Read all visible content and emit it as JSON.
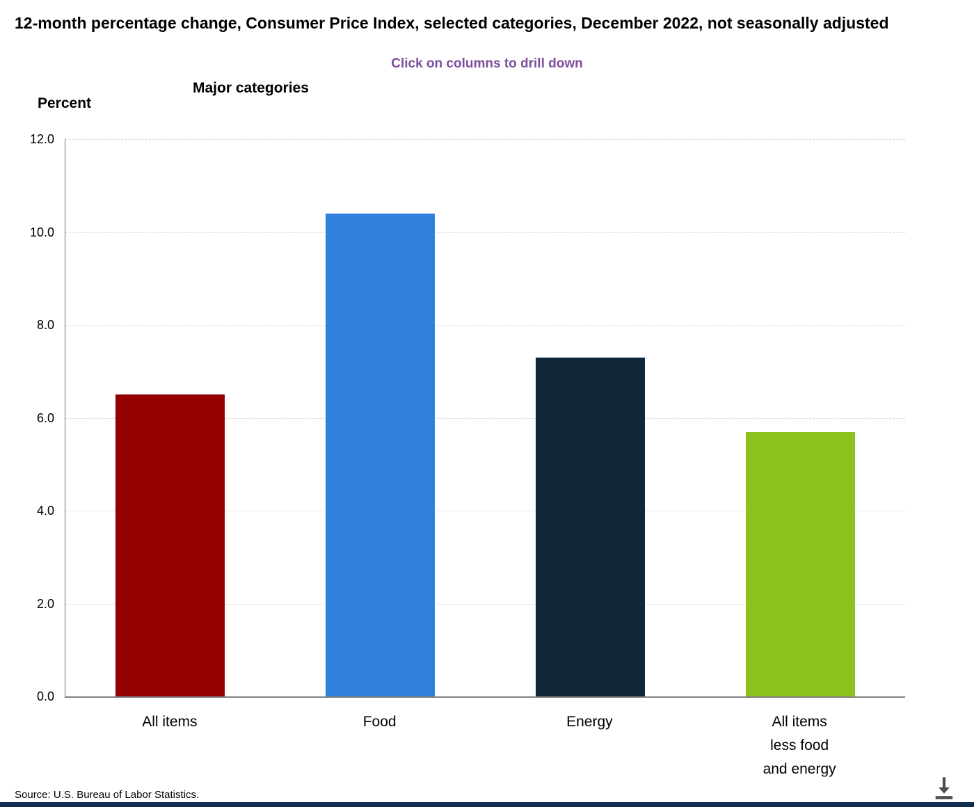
{
  "page": {
    "title": "12-month percentage change, Consumer Price Index, selected categories, December 2022, not seasonally adjusted",
    "drill_hint": "Click on columns to drill down",
    "subtitle": "Major categories",
    "y_axis_title": "Percent",
    "source": "Source: U.S. Bureau of Labor Statistics."
  },
  "chart_data": {
    "type": "bar",
    "title": "12-month percentage change, Consumer Price Index, selected categories, December 2022, not seasonally adjusted",
    "subtitle": "Major categories",
    "categories": [
      "All items",
      "Food",
      "Energy",
      "All items\nless food\nand energy"
    ],
    "values": [
      6.5,
      10.4,
      7.3,
      5.7
    ],
    "bar_colors": [
      "#940000",
      "#2F81DD",
      "#112639",
      "#8CC21E"
    ],
    "xlabel": "",
    "ylabel": "Percent",
    "ylim": [
      0,
      12
    ],
    "ytick_step": 2,
    "ytick_labels": [
      "0.0",
      "2.0",
      "4.0",
      "6.0",
      "8.0",
      "10.0",
      "12.0"
    ],
    "grid": "horizontal-dashed",
    "legend": "none",
    "interaction_hint": "Click on columns to drill down"
  },
  "icons": {
    "download": "download-icon"
  },
  "colors": {
    "drill_hint": "#7D4E9E",
    "axis_line": "#808080",
    "gridline": "#D9D9D9",
    "footer_bar": "#112E51",
    "download_icon": "#4D4D4D"
  }
}
